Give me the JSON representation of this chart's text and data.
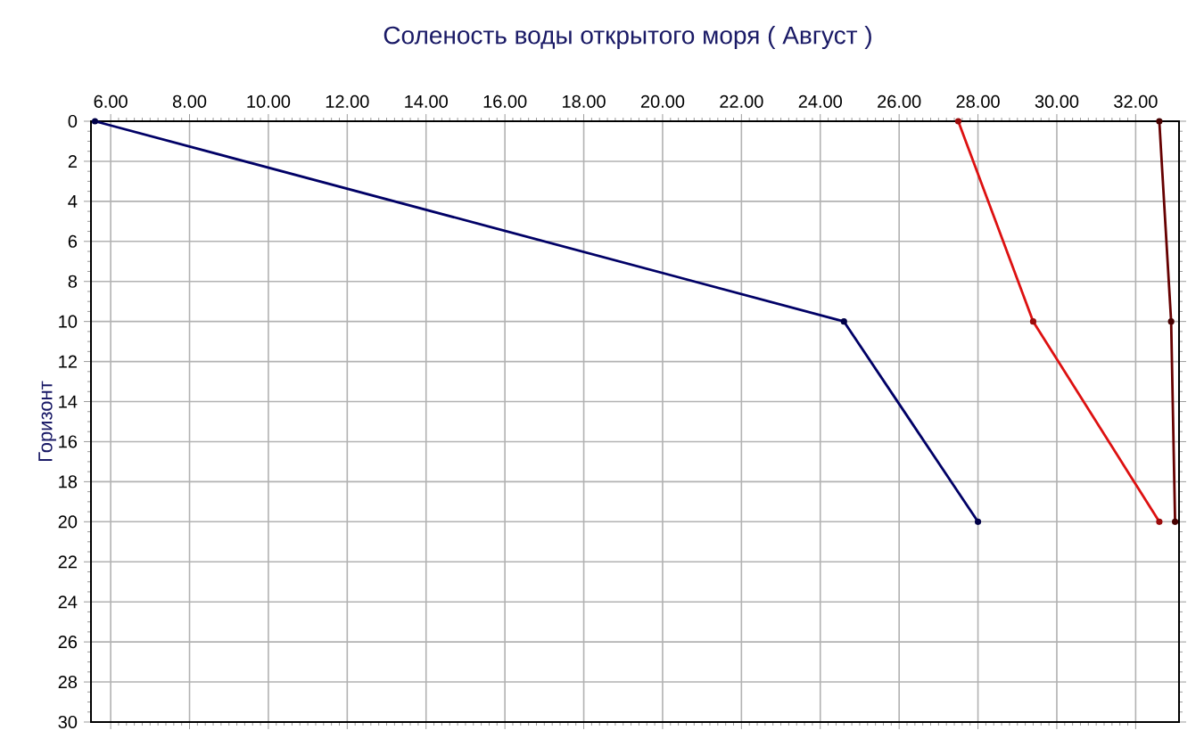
{
  "chart_data": {
    "type": "line",
    "title": "Соленость воды открытого моря    ( Август )",
    "ylabel": "Горизонт",
    "xlim": [
      5.5,
      33.1
    ],
    "ylim": [
      30,
      0
    ],
    "xticks": [
      {
        "value": 6,
        "label": "6.00"
      },
      {
        "value": 8,
        "label": "8.00"
      },
      {
        "value": 10,
        "label": "10.00"
      },
      {
        "value": 12,
        "label": "12.00"
      },
      {
        "value": 14,
        "label": "14.00"
      },
      {
        "value": 16,
        "label": "16.00"
      },
      {
        "value": 18,
        "label": "18.00"
      },
      {
        "value": 20,
        "label": "20.00"
      },
      {
        "value": 22,
        "label": "22.00"
      },
      {
        "value": 24,
        "label": "24.00"
      },
      {
        "value": 26,
        "label": "26.00"
      },
      {
        "value": 28,
        "label": "28.00"
      },
      {
        "value": 30,
        "label": "30.00"
      },
      {
        "value": 32,
        "label": "32.00"
      }
    ],
    "yticks": [
      0,
      2,
      4,
      6,
      8,
      10,
      12,
      14,
      16,
      18,
      20,
      22,
      24,
      26,
      28,
      30
    ],
    "grid": true,
    "marker": "circle",
    "line_style": "solid",
    "series": [
      {
        "color": "#000066",
        "x": [
          5.6,
          24.6,
          28.0
        ],
        "values": [
          0,
          10,
          20
        ]
      },
      {
        "color": "#dd1111",
        "x": [
          27.5,
          29.4,
          32.6
        ],
        "values": [
          0,
          10,
          20
        ]
      },
      {
        "color": "#660000",
        "x": [
          32.6,
          32.9,
          33.0
        ],
        "values": [
          0,
          10,
          20
        ]
      }
    ]
  }
}
